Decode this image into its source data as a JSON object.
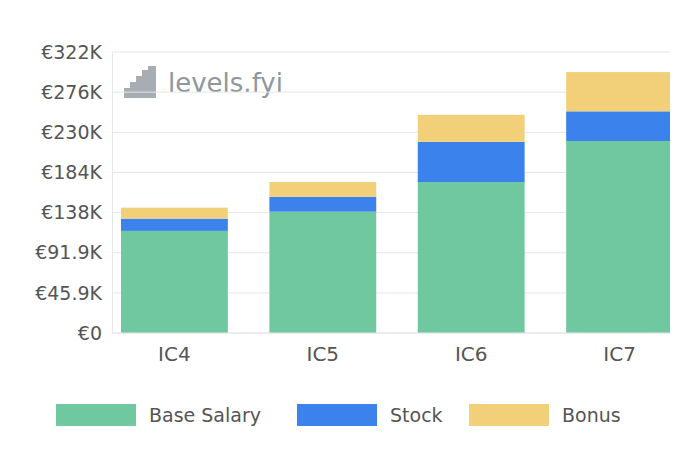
{
  "chart_data": {
    "type": "bar",
    "stacked": true,
    "grid": true,
    "legend": "bottom",
    "annotations": [
      "levels.fyi"
    ],
    "categories": [
      "IC4",
      "IC5",
      "IC6",
      "IC7"
    ],
    "series": [
      {
        "name": "Base Salary",
        "color": "#70c8a0",
        "values": [
          117000,
          139000,
          173000,
          220000
        ]
      },
      {
        "name": "Stock",
        "color": "#3b82ec",
        "values": [
          14000,
          17000,
          46000,
          34000
        ]
      },
      {
        "name": "Bonus",
        "color": "#f2d07a",
        "values": [
          12600,
          17000,
          31000,
          45000
        ]
      }
    ],
    "ylim": [
      0,
      322000
    ],
    "yticks": [
      {
        "value": 0,
        "label": "€0"
      },
      {
        "value": 45900,
        "label": "€45.9K"
      },
      {
        "value": 91900,
        "label": "€91.9K"
      },
      {
        "value": 138000,
        "label": "€138K"
      },
      {
        "value": 184000,
        "label": "€184K"
      },
      {
        "value": 230000,
        "label": "€230K"
      },
      {
        "value": 276000,
        "label": "€276K"
      },
      {
        "value": 322000,
        "label": "€322K"
      }
    ]
  }
}
